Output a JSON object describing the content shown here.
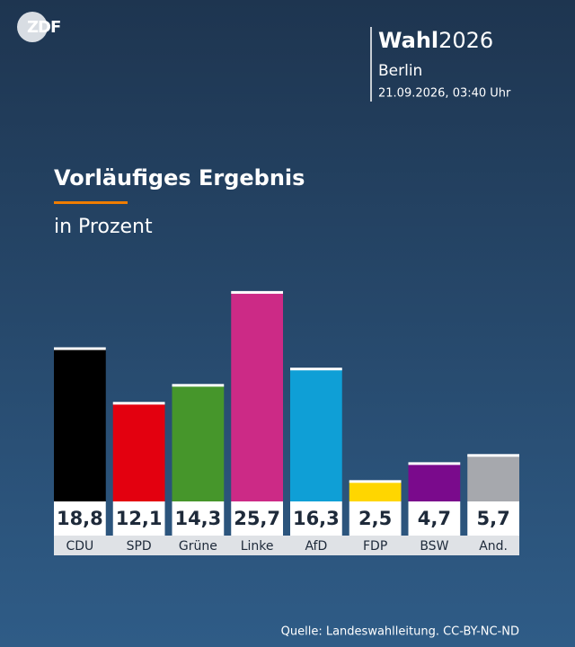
{
  "logo": "ZDF",
  "header": {
    "brand": "Wahl",
    "year": "2026",
    "region": "Berlin",
    "timestamp": "21.09.2026, 03:40 Uhr"
  },
  "chart_data": {
    "type": "bar",
    "title": "Vorläufiges Ergebnis",
    "subtitle": "in Prozent",
    "categories": [
      "CDU",
      "SPD",
      "Grüne",
      "Linke",
      "AfD",
      "FDP",
      "BSW",
      "And."
    ],
    "values": [
      18.8,
      12.1,
      14.3,
      25.7,
      16.3,
      2.5,
      4.7,
      5.7
    ],
    "value_labels": [
      "18,8",
      "12,1",
      "14,3",
      "25,7",
      "16,3",
      "2,5",
      "4,7",
      "5,7"
    ],
    "colors": [
      "#000000",
      "#e3000f",
      "#46962b",
      "#cc2a86",
      "#0f9fd6",
      "#ffd600",
      "#7a0a8c",
      "#a6a8ad"
    ]
  },
  "source": "Quelle: Landeswahlleitung. CC-BY-NC-ND"
}
